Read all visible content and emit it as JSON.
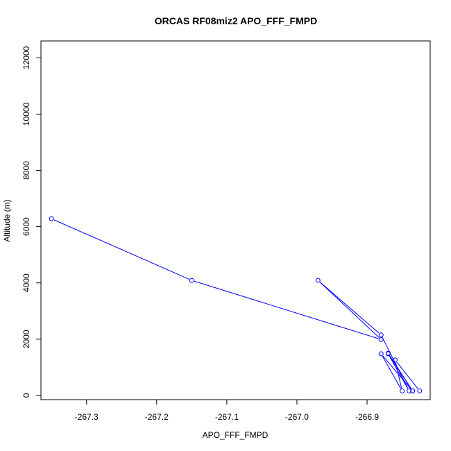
{
  "chart_data": {
    "type": "line",
    "title": "ORCAS RF08miz2 APO_FFF_FMPD",
    "xlabel": "APO_FFF_FMPD",
    "ylabel": "Altitude (m)",
    "xlim": [
      -267.365,
      -266.81
    ],
    "ylim": [
      -150,
      12600
    ],
    "x_ticks": [
      -267.3,
      -267.2,
      -267.1,
      -267.0,
      -266.9
    ],
    "x_tick_labels": [
      "-267.3",
      "-267.2",
      "-267.1",
      "-267.0",
      "-266.9"
    ],
    "y_ticks": [
      0,
      2000,
      4000,
      6000,
      8000,
      10000,
      12000
    ],
    "y_tick_labels": [
      "0",
      "2000",
      "4000",
      "6000",
      "8000",
      "10000",
      "12000"
    ],
    "grid": false,
    "legend": "none",
    "series": [
      {
        "color": "#0000ff",
        "marker": "open-circle",
        "points": [
          {
            "x": -267.35,
            "y": 6280
          },
          {
            "x": -267.15,
            "y": 4090
          },
          {
            "x": -266.88,
            "y": 1990
          },
          {
            "x": -266.97,
            "y": 4090
          },
          {
            "x": -266.88,
            "y": 2150
          },
          {
            "x": -266.84,
            "y": 160
          },
          {
            "x": -266.87,
            "y": 1480
          },
          {
            "x": -266.835,
            "y": 160
          },
          {
            "x": -266.87,
            "y": 1500
          },
          {
            "x": -266.835,
            "y": 160
          },
          {
            "x": -266.88,
            "y": 1480
          },
          {
            "x": -266.85,
            "y": 160
          },
          {
            "x": -266.86,
            "y": 1260
          },
          {
            "x": -266.825,
            "y": 160
          }
        ]
      }
    ]
  }
}
